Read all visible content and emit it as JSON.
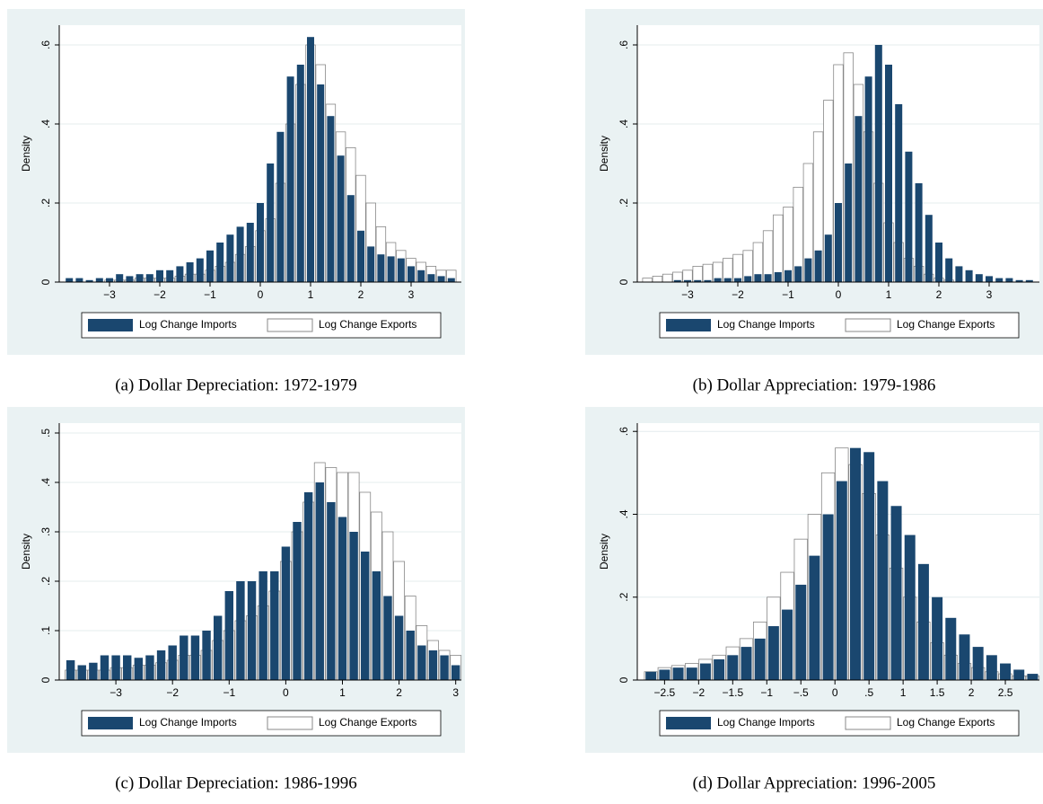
{
  "chart_data": [
    {
      "type": "histogram",
      "caption": "(a) Dollar Depreciation: 1972-1979",
      "y_label": "Density",
      "xlim": [
        -4,
        4
      ],
      "ylim": [
        0,
        0.65
      ],
      "grid": true,
      "xticks": [
        {
          "value": -3,
          "label": "−3"
        },
        {
          "value": -2,
          "label": "−2"
        },
        {
          "value": -1,
          "label": "−1"
        },
        0,
        1,
        2,
        3
      ],
      "yticks": [
        0,
        {
          "value": 0.2,
          "label": ".2"
        },
        {
          "value": 0.4,
          "label": ".4"
        },
        {
          "value": 0.6,
          "label": ".6"
        }
      ],
      "bins": [
        -3.9,
        -3.7,
        -3.5,
        -3.3,
        -3.1,
        -2.9,
        -2.7,
        -2.5,
        -2.3,
        -2.1,
        -1.9,
        -1.7,
        -1.5,
        -1.3,
        -1.1,
        -0.9,
        -0.7,
        -0.5,
        -0.3,
        -0.1,
        0.1,
        0.3,
        0.5,
        0.7,
        0.9,
        1.1,
        1.3,
        1.5,
        1.7,
        1.9,
        2.1,
        2.3,
        2.5,
        2.7,
        2.9,
        3.1,
        3.3,
        3.5,
        3.7,
        3.9
      ],
      "series": [
        {
          "name": "Log Change Imports",
          "color": "#1a476f",
          "values": [
            0.01,
            0.01,
            0.005,
            0.01,
            0.01,
            0.02,
            0.015,
            0.02,
            0.02,
            0.03,
            0.03,
            0.04,
            0.05,
            0.06,
            0.08,
            0.1,
            0.12,
            0.14,
            0.15,
            0.2,
            0.3,
            0.38,
            0.52,
            0.55,
            0.62,
            0.5,
            0.42,
            0.32,
            0.22,
            0.13,
            0.09,
            0.07,
            0.065,
            0.06,
            0.04,
            0.03,
            0.02,
            0.015,
            0.01
          ]
        },
        {
          "name": "Log Change Exports",
          "color": "#ffffff",
          "values": [
            0,
            0,
            0,
            0,
            0.005,
            0.005,
            0.005,
            0.01,
            0.01,
            0.01,
            0.01,
            0.015,
            0.02,
            0.02,
            0.03,
            0.04,
            0.05,
            0.07,
            0.09,
            0.13,
            0.16,
            0.25,
            0.4,
            0.5,
            0.6,
            0.55,
            0.45,
            0.38,
            0.34,
            0.27,
            0.2,
            0.14,
            0.1,
            0.08,
            0.06,
            0.05,
            0.04,
            0.03,
            0.03
          ]
        }
      ]
    },
    {
      "type": "histogram",
      "caption": "(b) Dollar Appreciation: 1979-1986",
      "y_label": "Density",
      "xlim": [
        -4,
        4
      ],
      "ylim": [
        0,
        0.65
      ],
      "grid": true,
      "xticks": [
        {
          "value": -3,
          "label": "−3"
        },
        {
          "value": -2,
          "label": "−2"
        },
        {
          "value": -1,
          "label": "−1"
        },
        0,
        1,
        2,
        3
      ],
      "yticks": [
        0,
        {
          "value": 0.2,
          "label": ".2"
        },
        {
          "value": 0.4,
          "label": ".4"
        },
        {
          "value": 0.6,
          "label": ".6"
        }
      ],
      "bins": [
        -3.9,
        -3.7,
        -3.5,
        -3.3,
        -3.1,
        -2.9,
        -2.7,
        -2.5,
        -2.3,
        -2.1,
        -1.9,
        -1.7,
        -1.5,
        -1.3,
        -1.1,
        -0.9,
        -0.7,
        -0.5,
        -0.3,
        -0.1,
        0.1,
        0.3,
        0.5,
        0.7,
        0.9,
        1.1,
        1.3,
        1.5,
        1.7,
        1.9,
        2.1,
        2.3,
        2.5,
        2.7,
        2.9,
        3.1,
        3.3,
        3.5,
        3.7,
        3.9
      ],
      "series": [
        {
          "name": "Log Change Imports",
          "color": "#1a476f",
          "values": [
            0,
            0,
            0,
            0.005,
            0.005,
            0.005,
            0.005,
            0.01,
            0.01,
            0.01,
            0.015,
            0.02,
            0.02,
            0.025,
            0.03,
            0.04,
            0.06,
            0.08,
            0.12,
            0.2,
            0.3,
            0.42,
            0.52,
            0.6,
            0.55,
            0.45,
            0.33,
            0.25,
            0.17,
            0.1,
            0.06,
            0.04,
            0.03,
            0.02,
            0.015,
            0.01,
            0.01,
            0.005,
            0.005
          ]
        },
        {
          "name": "Log Change Exports",
          "color": "#ffffff",
          "values": [
            0.01,
            0.015,
            0.02,
            0.025,
            0.03,
            0.04,
            0.045,
            0.05,
            0.06,
            0.07,
            0.08,
            0.1,
            0.13,
            0.17,
            0.19,
            0.24,
            0.3,
            0.38,
            0.46,
            0.55,
            0.58,
            0.5,
            0.38,
            0.25,
            0.15,
            0.1,
            0.06,
            0.04,
            0.02,
            0.01,
            0.005,
            0,
            0,
            0,
            0,
            0,
            0,
            0,
            0
          ]
        }
      ]
    },
    {
      "type": "histogram",
      "caption": "(c) Dollar Depreciation: 1986-1996",
      "y_label": "Density",
      "xlim": [
        -4,
        3.1
      ],
      "ylim": [
        0,
        0.52
      ],
      "grid": true,
      "xticks": [
        {
          "value": -3,
          "label": "−3"
        },
        {
          "value": -2,
          "label": "−2"
        },
        {
          "value": -1,
          "label": "−1"
        },
        0,
        1,
        2,
        3
      ],
      "yticks": [
        0,
        {
          "value": 0.1,
          "label": ".1"
        },
        {
          "value": 0.2,
          "label": ".2"
        },
        {
          "value": 0.3,
          "label": ".3"
        },
        {
          "value": 0.4,
          "label": ".4"
        },
        {
          "value": 0.5,
          "label": ".5"
        }
      ],
      "bins": [
        -3.9,
        -3.7,
        -3.5,
        -3.3,
        -3.1,
        -2.9,
        -2.7,
        -2.5,
        -2.3,
        -2.1,
        -1.9,
        -1.7,
        -1.5,
        -1.3,
        -1.1,
        -0.9,
        -0.7,
        -0.5,
        -0.3,
        -0.1,
        0.1,
        0.3,
        0.5,
        0.7,
        0.9,
        1.1,
        1.3,
        1.5,
        1.7,
        1.9,
        2.1,
        2.3,
        2.5,
        2.7,
        2.9,
        3.1
      ],
      "series": [
        {
          "name": "Log Change Imports",
          "color": "#1a476f",
          "values": [
            0.04,
            0.03,
            0.035,
            0.05,
            0.05,
            0.05,
            0.045,
            0.05,
            0.06,
            0.07,
            0.09,
            0.09,
            0.1,
            0.13,
            0.18,
            0.2,
            0.2,
            0.22,
            0.22,
            0.27,
            0.32,
            0.38,
            0.4,
            0.36,
            0.33,
            0.3,
            0.26,
            0.22,
            0.17,
            0.13,
            0.1,
            0.07,
            0.06,
            0.05,
            0.03
          ]
        },
        {
          "name": "Log Change Exports",
          "color": "#ffffff",
          "values": [
            0.02,
            0.02,
            0.02,
            0.02,
            0.025,
            0.025,
            0.03,
            0.03,
            0.035,
            0.04,
            0.05,
            0.05,
            0.06,
            0.08,
            0.1,
            0.12,
            0.13,
            0.15,
            0.18,
            0.24,
            0.3,
            0.36,
            0.44,
            0.43,
            0.42,
            0.42,
            0.38,
            0.34,
            0.3,
            0.24,
            0.17,
            0.11,
            0.08,
            0.06,
            0.05
          ]
        }
      ]
    },
    {
      "type": "histogram",
      "caption": "(d) Dollar Appreciation: 1996-2005",
      "y_label": "Density",
      "xlim": [
        -2.9,
        3.0
      ],
      "ylim": [
        0,
        0.62
      ],
      "grid": true,
      "xticks": [
        {
          "value": -2.5,
          "label": "−2.5"
        },
        {
          "value": -2,
          "label": "−2"
        },
        {
          "value": -1.5,
          "label": "−1.5"
        },
        {
          "value": -1,
          "label": "−1"
        },
        {
          "value": -0.5,
          "label": "−.5"
        },
        0,
        {
          "value": 0.5,
          "label": ".5"
        },
        1,
        1.5,
        2,
        2.5
      ],
      "yticks": [
        0,
        {
          "value": 0.2,
          "label": ".2"
        },
        {
          "value": 0.4,
          "label": ".4"
        },
        {
          "value": 0.6,
          "label": ".6"
        }
      ],
      "bins": [
        -2.8,
        -2.6,
        -2.4,
        -2.2,
        -2.0,
        -1.8,
        -1.6,
        -1.4,
        -1.2,
        -1.0,
        -0.8,
        -0.6,
        -0.4,
        -0.2,
        0,
        0.2,
        0.4,
        0.6,
        0.8,
        1.0,
        1.2,
        1.4,
        1.6,
        1.8,
        2.0,
        2.2,
        2.4,
        2.6,
        2.8,
        3.0
      ],
      "series": [
        {
          "name": "Log Change Imports",
          "color": "#1a476f",
          "values": [
            0.02,
            0.025,
            0.03,
            0.03,
            0.04,
            0.05,
            0.06,
            0.08,
            0.1,
            0.13,
            0.17,
            0.23,
            0.3,
            0.4,
            0.48,
            0.56,
            0.55,
            0.48,
            0.42,
            0.35,
            0.28,
            0.2,
            0.15,
            0.11,
            0.08,
            0.06,
            0.04,
            0.025,
            0.015
          ]
        },
        {
          "name": "Log Change Exports",
          "color": "#ffffff",
          "values": [
            0.02,
            0.03,
            0.035,
            0.04,
            0.05,
            0.06,
            0.08,
            0.1,
            0.14,
            0.2,
            0.26,
            0.34,
            0.4,
            0.5,
            0.56,
            0.52,
            0.45,
            0.35,
            0.27,
            0.2,
            0.14,
            0.09,
            0.06,
            0.04,
            0.03,
            0.02,
            0.015,
            0.01,
            0.01
          ]
        }
      ]
    }
  ]
}
